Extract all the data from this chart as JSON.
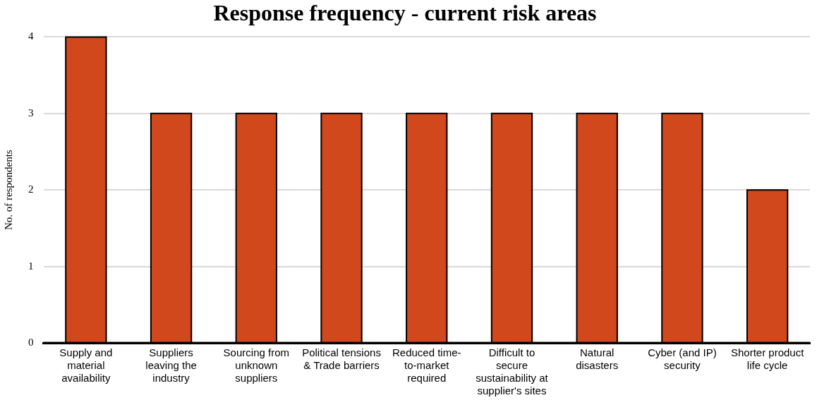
{
  "chart_data": {
    "type": "bar",
    "title": "Response frequency - current risk areas",
    "ylabel": "No. of respondents",
    "categories": [
      "Supply and material availability",
      "Suppliers leaving the industry",
      "Sourcing from unknown suppliers",
      "Political tensions & Trade barriers",
      "Reduced time-to-market required",
      "Difficult to secure sustainability at supplier's sites",
      "Natural disasters",
      "Cyber (and IP) security",
      "Shorter product life cycle"
    ],
    "values": [
      4,
      3,
      3,
      3,
      3,
      3,
      3,
      3,
      2
    ],
    "color": "#d0481c",
    "ylim": [
      0,
      4
    ],
    "yticks": [
      0,
      1,
      2,
      3,
      4
    ],
    "grid": "y",
    "legend": false
  }
}
